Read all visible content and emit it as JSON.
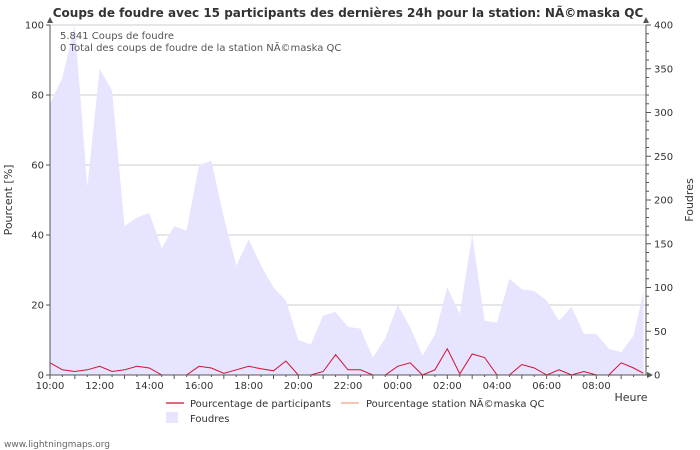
{
  "chart_data": {
    "type": "area",
    "title": "Coups de foudre avec 15 participants des dernières 24h pour la station: NÃ©maska QC",
    "ylabel": "Pourcent   [%]",
    "y2label": "Foudres",
    "xlabel": "Heure",
    "ylim": [
      0,
      100
    ],
    "y2lim": [
      0,
      400
    ],
    "yticks": [
      "0",
      "20",
      "40",
      "60",
      "80",
      "100"
    ],
    "y2ticks": [
      "0",
      "50",
      "100",
      "150",
      "200",
      "250",
      "300",
      "350",
      "400"
    ],
    "xticks": [
      "10:00",
      "12:00",
      "14:00",
      "16:00",
      "18:00",
      "20:00",
      "22:00",
      "00:00",
      "02:00",
      "04:00",
      "06:00",
      "08:00"
    ],
    "annotations": [
      "5.841  Coups de foudre",
      "0 Total des coups de foudre de la station NÃ©maska QC"
    ],
    "legend": [
      {
        "label": "Pourcentage de participants",
        "color": "#d6112f",
        "kind": "line"
      },
      {
        "label": "Pourcentage station NÃ©maska QC",
        "color": "#f0a080",
        "kind": "line"
      },
      {
        "label": "Foudres",
        "color": "#e6e4ff",
        "kind": "area"
      }
    ],
    "x_hours": [
      0,
      0.5,
      1,
      1.5,
      2,
      2.5,
      3,
      3.5,
      4,
      4.5,
      5,
      5.5,
      6,
      6.5,
      7,
      7.5,
      8,
      8.5,
      9,
      9.5,
      10,
      10.5,
      11,
      11.5,
      12,
      12.5,
      13,
      13.5,
      14,
      14.5,
      15,
      15.5,
      16,
      16.5,
      17,
      17.5,
      18,
      18.5,
      19,
      19.5,
      20,
      20.5,
      21,
      21.5,
      22,
      22.5,
      23,
      23.5,
      23.9
    ],
    "series": [
      {
        "name": "Foudres",
        "axis": "right",
        "color": "#e6e4ff",
        "values": [
          310,
          340,
          400,
          215,
          350,
          325,
          170,
          180,
          185,
          145,
          170,
          165,
          240,
          245,
          180,
          125,
          155,
          125,
          100,
          85,
          40,
          35,
          68,
          72,
          55,
          53,
          20,
          42,
          80,
          55,
          22,
          46,
          100,
          70,
          160,
          62,
          60,
          110,
          98,
          96,
          85,
          62,
          78,
          47,
          47,
          30,
          26,
          45,
          95
        ]
      },
      {
        "name": "Pourcentage de participants",
        "axis": "left",
        "color": "#d6112f",
        "values": [
          3.5,
          1.5,
          1,
          1.5,
          2.5,
          1,
          1.5,
          2.5,
          2,
          0,
          0,
          0,
          2.5,
          2,
          0.5,
          1.5,
          2.5,
          1.8,
          1.2,
          4,
          0,
          0,
          1,
          5.8,
          1.5,
          1.5,
          0,
          0,
          2.5,
          3.5,
          0,
          1.5,
          7.5,
          0.3,
          6,
          5,
          0,
          0,
          3,
          2,
          0,
          1.5,
          0,
          1,
          0,
          0,
          3.5,
          2,
          0.5
        ]
      },
      {
        "name": "Pourcentage station NÃ©maska QC",
        "axis": "left",
        "color": "#f0a080",
        "values": [
          0,
          0,
          0,
          0,
          0,
          0,
          0,
          0,
          0,
          0,
          0,
          0,
          0,
          0,
          0,
          0,
          0,
          0,
          0,
          0,
          0,
          0,
          0,
          0,
          0,
          0,
          0,
          0,
          0,
          0,
          0,
          0,
          0,
          0,
          0,
          0,
          0,
          0,
          0,
          0,
          0,
          0,
          0,
          0,
          0,
          0,
          0,
          0,
          0
        ]
      }
    ]
  },
  "footer": "www.lightningmaps.org"
}
